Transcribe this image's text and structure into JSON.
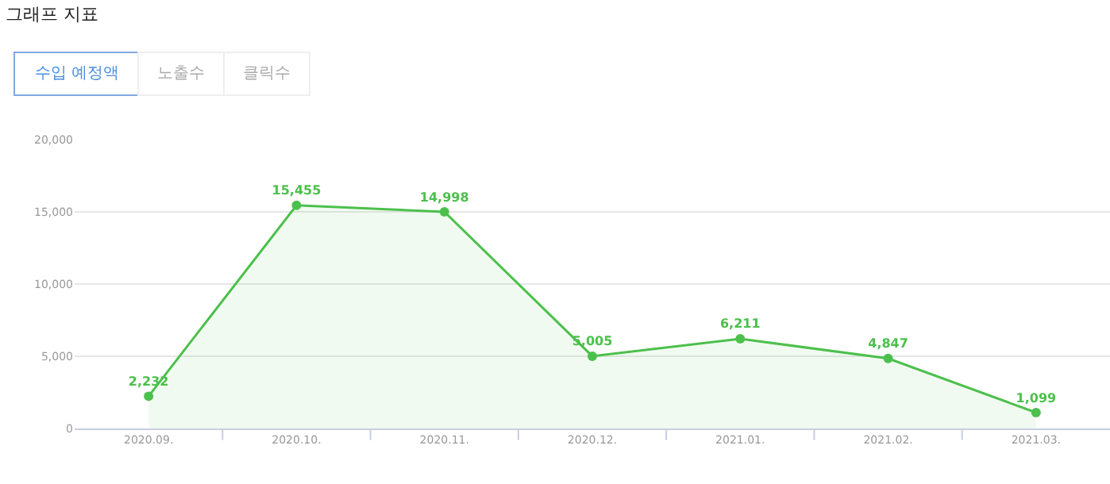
{
  "chart_data": {
    "type": "area",
    "title": "그래프 지표",
    "annotations": [
      "수입 예정액",
      "노출수",
      "클릭수"
    ],
    "categories": [
      "2020.09.",
      "2020.10.",
      "2020.11.",
      "2020.12.",
      "2021.01.",
      "2021.02.",
      "2021.03."
    ],
    "series": [
      {
        "color": "#4cc04c",
        "values": [
          2232,
          15455,
          14998,
          5005,
          6211,
          4847,
          1099
        ],
        "value_labels": [
          "2,232",
          "15,455",
          "14,998",
          "5,005",
          "6,211",
          "4,847",
          "1,099"
        ]
      }
    ],
    "ylim": [
      0,
      20000
    ],
    "yticks": [
      0,
      {
        "value": 5000,
        "label": "5,000"
      },
      {
        "value": 10000,
        "label": "10,000"
      },
      {
        "value": 15000,
        "label": "15,000"
      },
      {
        "value": 20000,
        "label": "20,000"
      }
    ],
    "grid": "y",
    "marker": "circle",
    "line_style": "solid"
  }
}
